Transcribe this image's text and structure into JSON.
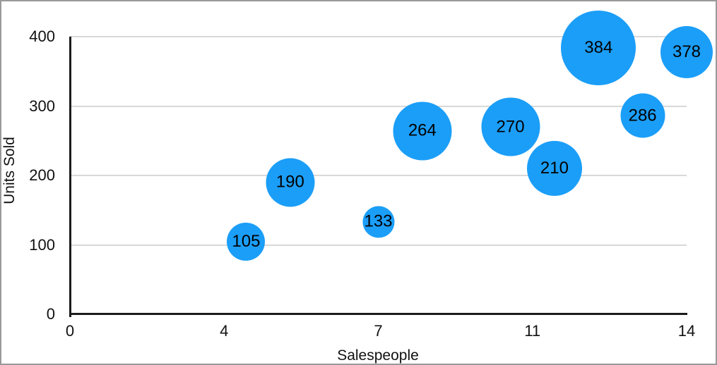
{
  "frame": {
    "background_color": "#ffffff",
    "border_color": "#999999"
  },
  "chart_data": {
    "type": "scatter",
    "subtype": "bubble",
    "title": "",
    "xlabel": "Salespeople",
    "ylabel": "Units Sold",
    "x_ticks": [
      "0",
      "4",
      "7",
      "11",
      "14"
    ],
    "y_ticks": [
      "0",
      "100",
      "200",
      "300",
      "400"
    ],
    "xlim": [
      0,
      14
    ],
    "ylim": [
      0,
      400
    ],
    "grid": "horizontal-only",
    "legend": "none",
    "bubble_color": "#1b9ef8",
    "gridline_color": "#d8d8d8",
    "axis_line_color": "#1c1c1c",
    "label_color": "#000000",
    "points": [
      {
        "x": 4,
        "y": 105,
        "label": "105",
        "radius_px": 27
      },
      {
        "x": 5,
        "y": 190,
        "label": "190",
        "radius_px": 34.5
      },
      {
        "x": 7,
        "y": 133,
        "label": "133",
        "radius_px": 22.5
      },
      {
        "x": 8,
        "y": 264,
        "label": "264",
        "radius_px": 41.5
      },
      {
        "x": 10,
        "y": 270,
        "label": "270",
        "radius_px": 41.5
      },
      {
        "x": 11,
        "y": 210,
        "label": "210",
        "radius_px": 39
      },
      {
        "x": 12,
        "y": 384,
        "label": "384",
        "radius_px": 53
      },
      {
        "x": 13,
        "y": 286,
        "label": "286",
        "radius_px": 31.5
      },
      {
        "x": 14,
        "y": 378,
        "label": "378",
        "radius_px": 37
      }
    ]
  }
}
